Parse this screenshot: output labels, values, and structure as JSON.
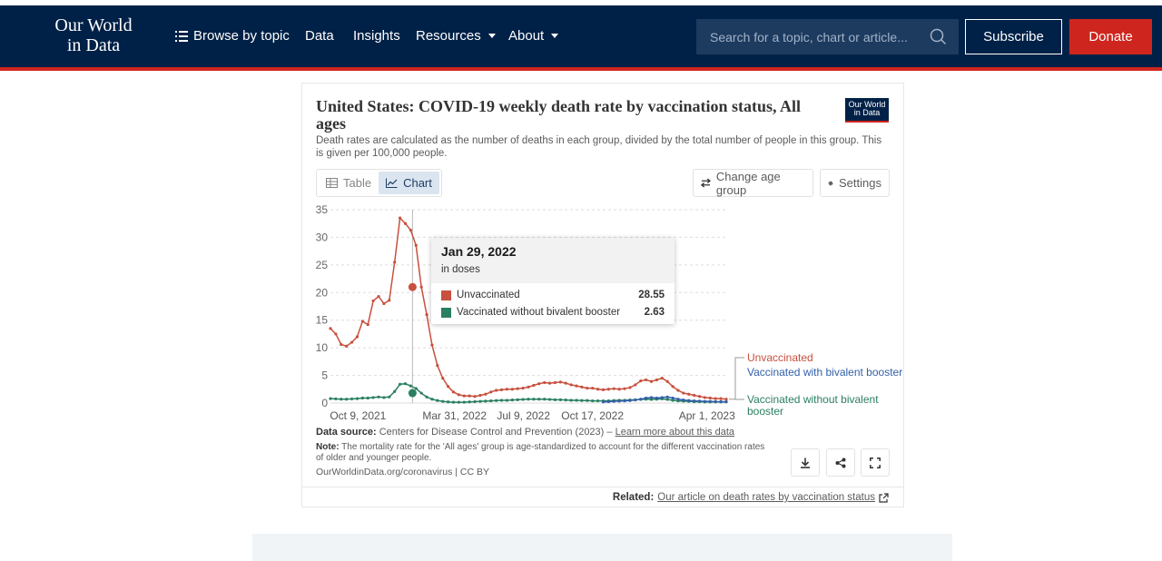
{
  "nav": {
    "logo_line1": "Our World",
    "logo_line2": "in Data",
    "links": [
      "Browse by topic",
      "Data",
      "Insights",
      "Resources",
      "About"
    ],
    "search_placeholder": "Search for a topic, chart or article...",
    "subscribe": "Subscribe",
    "donate": "Donate"
  },
  "card": {
    "title": "United States: COVID-19 weekly death rate by vaccination status, All ages",
    "subtitle": "Death rates are calculated as the number of deaths in each group, divided by the total number of people in this group. This is given per 100,000 people.",
    "logo_line1": "Our World",
    "logo_line2": "in Data",
    "tabs": [
      "Table",
      "Chart"
    ],
    "active_tab": "Chart",
    "change_age": "Change age group",
    "settings": "Settings"
  },
  "tooltip": {
    "date": "Jan 29, 2022",
    "sub": "in doses",
    "rows": [
      {
        "label": "Unvaccinated",
        "value": "28.55",
        "color": "#c8503e"
      },
      {
        "label": "Vaccinated without bivalent booster",
        "value": "2.63",
        "color": "#2a7f5f"
      }
    ]
  },
  "footer": {
    "source_label": "Data source:",
    "source_text": "Centers for Disease Control and Prevention (2023) –",
    "source_link": "Learn more about this data",
    "note_label": "Note:",
    "note_text": "The mortality rate for the 'All ages' group is age-standardized to account for the different vaccination rates of older and younger people.",
    "url": "OurWorldinData.org/coronavirus | CC BY",
    "related_label": "Related:",
    "related_link": "Our article on death rates by vaccination status"
  },
  "chart_data": {
    "type": "line",
    "title": "United States: COVID-19 weekly death rate by vaccination status, All ages",
    "y_ticks": [
      0,
      5,
      10,
      15,
      20,
      25,
      30,
      35
    ],
    "ylim": [
      0,
      35
    ],
    "x_tick_labels": [
      "Oct 9, 2021",
      "Mar 31, 2022",
      "Jul 9, 2022",
      "Oct 17, 2022",
      "Apr 1, 2023"
    ],
    "x_tick_dates": [
      "2021-10-09",
      "2022-03-31",
      "2022-07-09",
      "2022-10-17",
      "2023-04-01"
    ],
    "x_start": "2021-10-02",
    "x_end": "2023-04-29",
    "highlight": {
      "date": "2022-01-29"
    },
    "series": [
      {
        "name": "Unvaccinated",
        "color": "#c8503e",
        "values": [
          13.5,
          12.5,
          10.6,
          10.3,
          11.0,
          12.0,
          14.8,
          14.2,
          18.5,
          19.3,
          18.0,
          18.6,
          25.5,
          33.5,
          32.5,
          31.3,
          28.55,
          21.0,
          16.0,
          10.5,
          6.8,
          4.5,
          3.0,
          2.0,
          1.5,
          1.3,
          1.3,
          1.2,
          1.4,
          1.6,
          2.0,
          2.3,
          2.4,
          2.5,
          2.5,
          2.6,
          2.7,
          2.9,
          3.2,
          3.5,
          3.7,
          3.6,
          3.7,
          3.8,
          3.6,
          3.3,
          3.1,
          2.9,
          2.7,
          2.7,
          2.5,
          2.4,
          2.5,
          2.6,
          2.5,
          2.6,
          2.8,
          3.3,
          4.0,
          4.2,
          3.9,
          4.2,
          4.5,
          3.9,
          3.0,
          2.3,
          1.8,
          1.6,
          1.4,
          1.2,
          1.0,
          0.9,
          0.8,
          0.8,
          0.7
        ]
      },
      {
        "name": "Vaccinated without bivalent booster",
        "color": "#2a7f5f",
        "values": [
          0.8,
          0.75,
          0.7,
          0.7,
          0.75,
          0.8,
          0.9,
          0.9,
          1.0,
          1.1,
          1.0,
          1.1,
          2.1,
          3.4,
          3.5,
          3.1,
          2.63,
          1.8,
          1.1,
          0.7,
          0.45,
          0.3,
          0.2,
          0.15,
          0.15,
          0.15,
          0.2,
          0.25,
          0.3,
          0.35,
          0.4,
          0.45,
          0.5,
          0.5,
          0.55,
          0.6,
          0.65,
          0.7,
          0.7,
          0.7,
          0.7,
          0.65,
          0.6,
          0.6,
          0.55,
          0.5,
          0.5,
          0.45,
          0.45,
          0.4,
          0.4,
          0.4,
          0.4,
          0.45,
          0.5,
          0.5,
          0.55,
          0.6,
          0.65,
          0.7,
          0.65,
          0.7,
          0.75,
          0.65,
          0.5,
          0.4,
          0.35,
          0.3,
          0.25,
          0.25,
          0.2,
          0.2,
          0.2,
          0.2,
          0.2
        ]
      },
      {
        "name": "Vaccinated with bivalent booster",
        "color": "#3360a9",
        "start_index": 51,
        "values": [
          0.2,
          0.25,
          0.3,
          0.35,
          0.4,
          0.45,
          0.55,
          0.7,
          0.9,
          1.0,
          0.9,
          1.0,
          1.1,
          0.9,
          0.7,
          0.55,
          0.45,
          0.4,
          0.35,
          0.3,
          0.3,
          0.25,
          0.25,
          0.25
        ]
      }
    ],
    "legend_labels": [
      "Unvaccinated",
      "Vaccinated with bivalent booster",
      "Vaccinated without bivalent booster"
    ]
  }
}
